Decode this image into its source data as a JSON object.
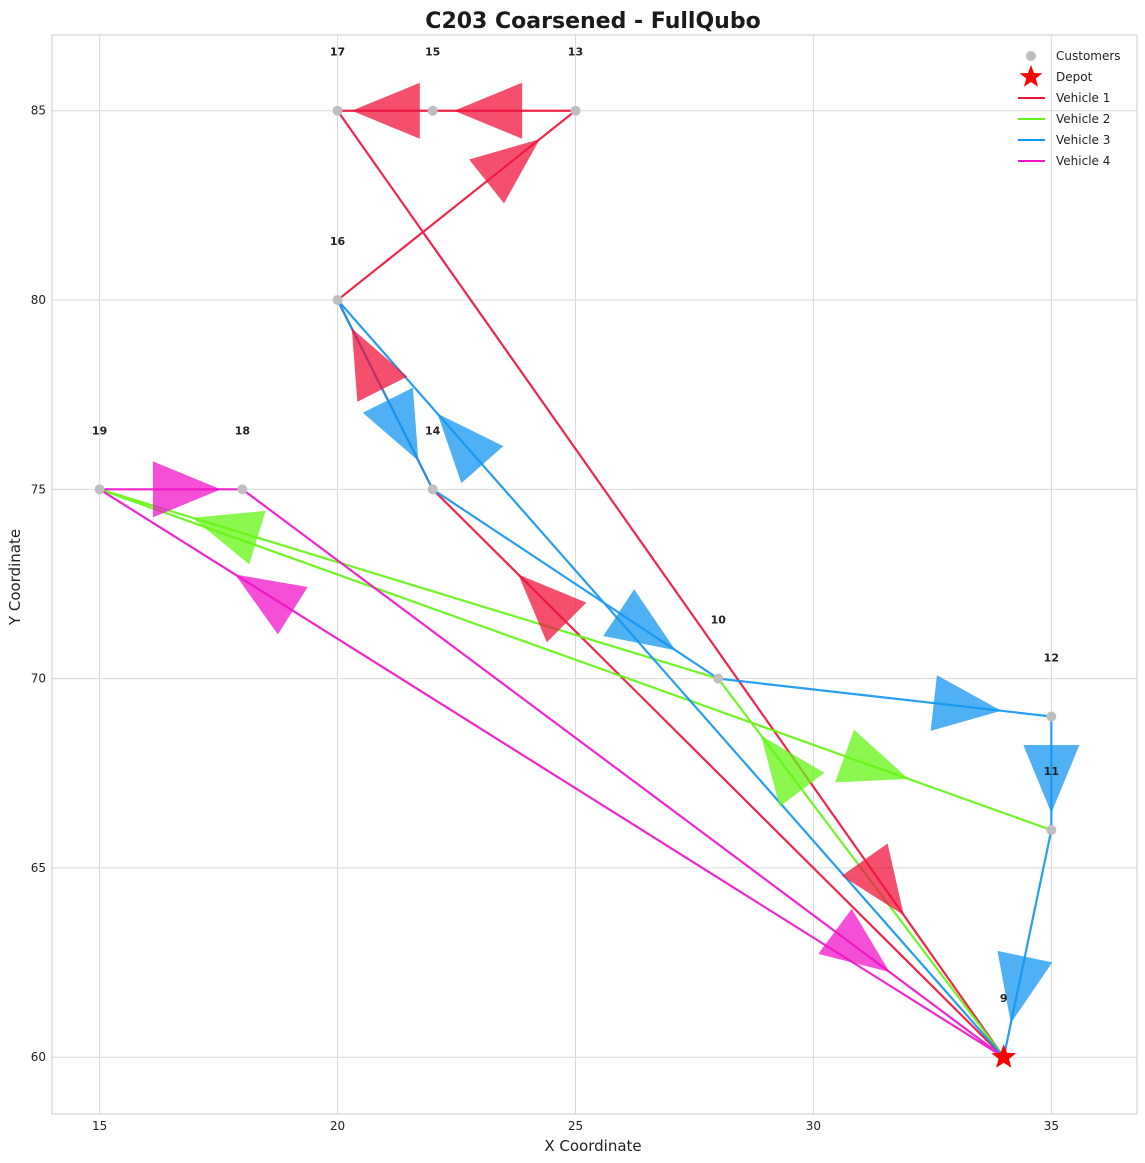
{
  "chart_data": {
    "type": "scatter",
    "title": "C203 Coarsened - FullQubo",
    "xlabel": "X Coordinate",
    "ylabel": "Y Coordinate",
    "xlim": [
      14,
      36.8
    ],
    "ylim": [
      58.5,
      87
    ],
    "xticks": [
      15,
      20,
      25,
      30,
      35
    ],
    "yticks": [
      60,
      65,
      70,
      75,
      80,
      85
    ],
    "grid": true,
    "legend_position": "top-right",
    "legend": [
      {
        "label": "Customers",
        "kind": "marker",
        "color": "#bfbfbf"
      },
      {
        "label": "Depot",
        "kind": "star",
        "color": "#ff0000"
      },
      {
        "label": "Vehicle 1",
        "kind": "line",
        "color": "#f0143c"
      },
      {
        "label": "Vehicle 2",
        "kind": "line",
        "color": "#64f514"
      },
      {
        "label": "Vehicle 3",
        "kind": "line",
        "color": "#1496f0"
      },
      {
        "label": "Vehicle 4",
        "kind": "line",
        "color": "#f014c8"
      }
    ],
    "customers": [
      {
        "id": "9",
        "x": 34,
        "y": 60
      },
      {
        "id": "10",
        "x": 28,
        "y": 70
      },
      {
        "id": "11",
        "x": 35,
        "y": 66
      },
      {
        "id": "12",
        "x": 35,
        "y": 69
      },
      {
        "id": "13",
        "x": 25,
        "y": 85
      },
      {
        "id": "14",
        "x": 22,
        "y": 75
      },
      {
        "id": "15",
        "x": 22,
        "y": 85
      },
      {
        "id": "16",
        "x": 20,
        "y": 80
      },
      {
        "id": "17",
        "x": 20,
        "y": 85
      },
      {
        "id": "18",
        "x": 18,
        "y": 75
      },
      {
        "id": "19",
        "x": 15,
        "y": 75
      }
    ],
    "depot": {
      "x": 34,
      "y": 60
    },
    "routes": [
      {
        "name": "Vehicle 1",
        "color": "#f0143c",
        "path": [
          [
            34,
            60
          ],
          [
            22,
            75
          ],
          [
            20,
            80
          ],
          [
            25,
            85
          ],
          [
            22,
            85
          ],
          [
            20,
            85
          ],
          [
            34,
            60
          ]
        ]
      },
      {
        "name": "Vehicle 2",
        "color": "#64f514",
        "path": [
          [
            34,
            60
          ],
          [
            28,
            70
          ],
          [
            15,
            75
          ],
          [
            35,
            66
          ]
        ]
      },
      {
        "name": "Vehicle 3",
        "color": "#1496f0",
        "path": [
          [
            34,
            60
          ],
          [
            20,
            80
          ],
          [
            22,
            75
          ],
          [
            28,
            70
          ],
          [
            35,
            69
          ],
          [
            35,
            66
          ],
          [
            34,
            60
          ]
        ]
      },
      {
        "name": "Vehicle 4",
        "color": "#f014c8",
        "path": [
          [
            34,
            60
          ],
          [
            15,
            75
          ],
          [
            18,
            75
          ],
          [
            34,
            60
          ]
        ]
      }
    ]
  }
}
